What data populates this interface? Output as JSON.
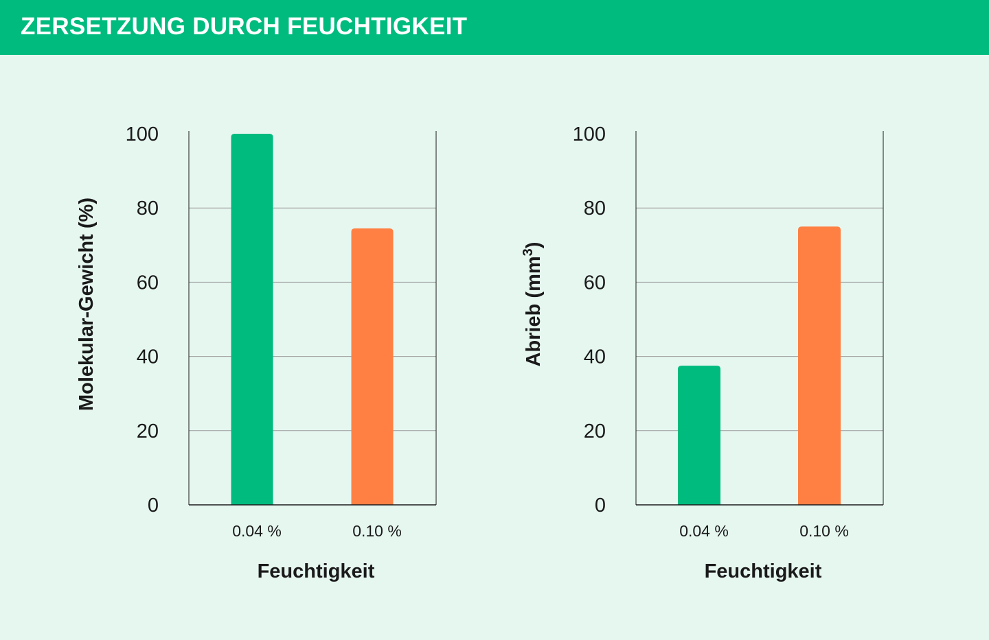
{
  "header": {
    "title": "ZERSETZUNG DURCH FEUCHTIGKEIT",
    "background": "#00bb7e"
  },
  "chart_data": [
    {
      "type": "bar",
      "categories": [
        "0.04 %",
        "0.10 %"
      ],
      "values": [
        100,
        74.5
      ],
      "colors": [
        "#00bb7e",
        "#ff8042"
      ],
      "xlabel": "Feuchtigkeit",
      "ylabel": "Molekular-Gewicht (%)",
      "ylim": [
        0,
        100
      ],
      "yticks": [
        "0",
        "20",
        "40",
        "60",
        "80",
        "100"
      ],
      "grid": true
    },
    {
      "type": "bar",
      "categories": [
        "0.04 %",
        "0.10 %"
      ],
      "values": [
        37.5,
        75
      ],
      "colors": [
        "#00bb7e",
        "#ff8042"
      ],
      "xlabel": "Feuchtigkeit",
      "ylabel_main": "Abrieb (mm",
      "ylabel_sup": "3",
      "ylabel_end": ")",
      "ylim": [
        0,
        100
      ],
      "yticks": [
        "0",
        "20",
        "40",
        "60",
        "80",
        "100"
      ],
      "grid": true
    }
  ]
}
